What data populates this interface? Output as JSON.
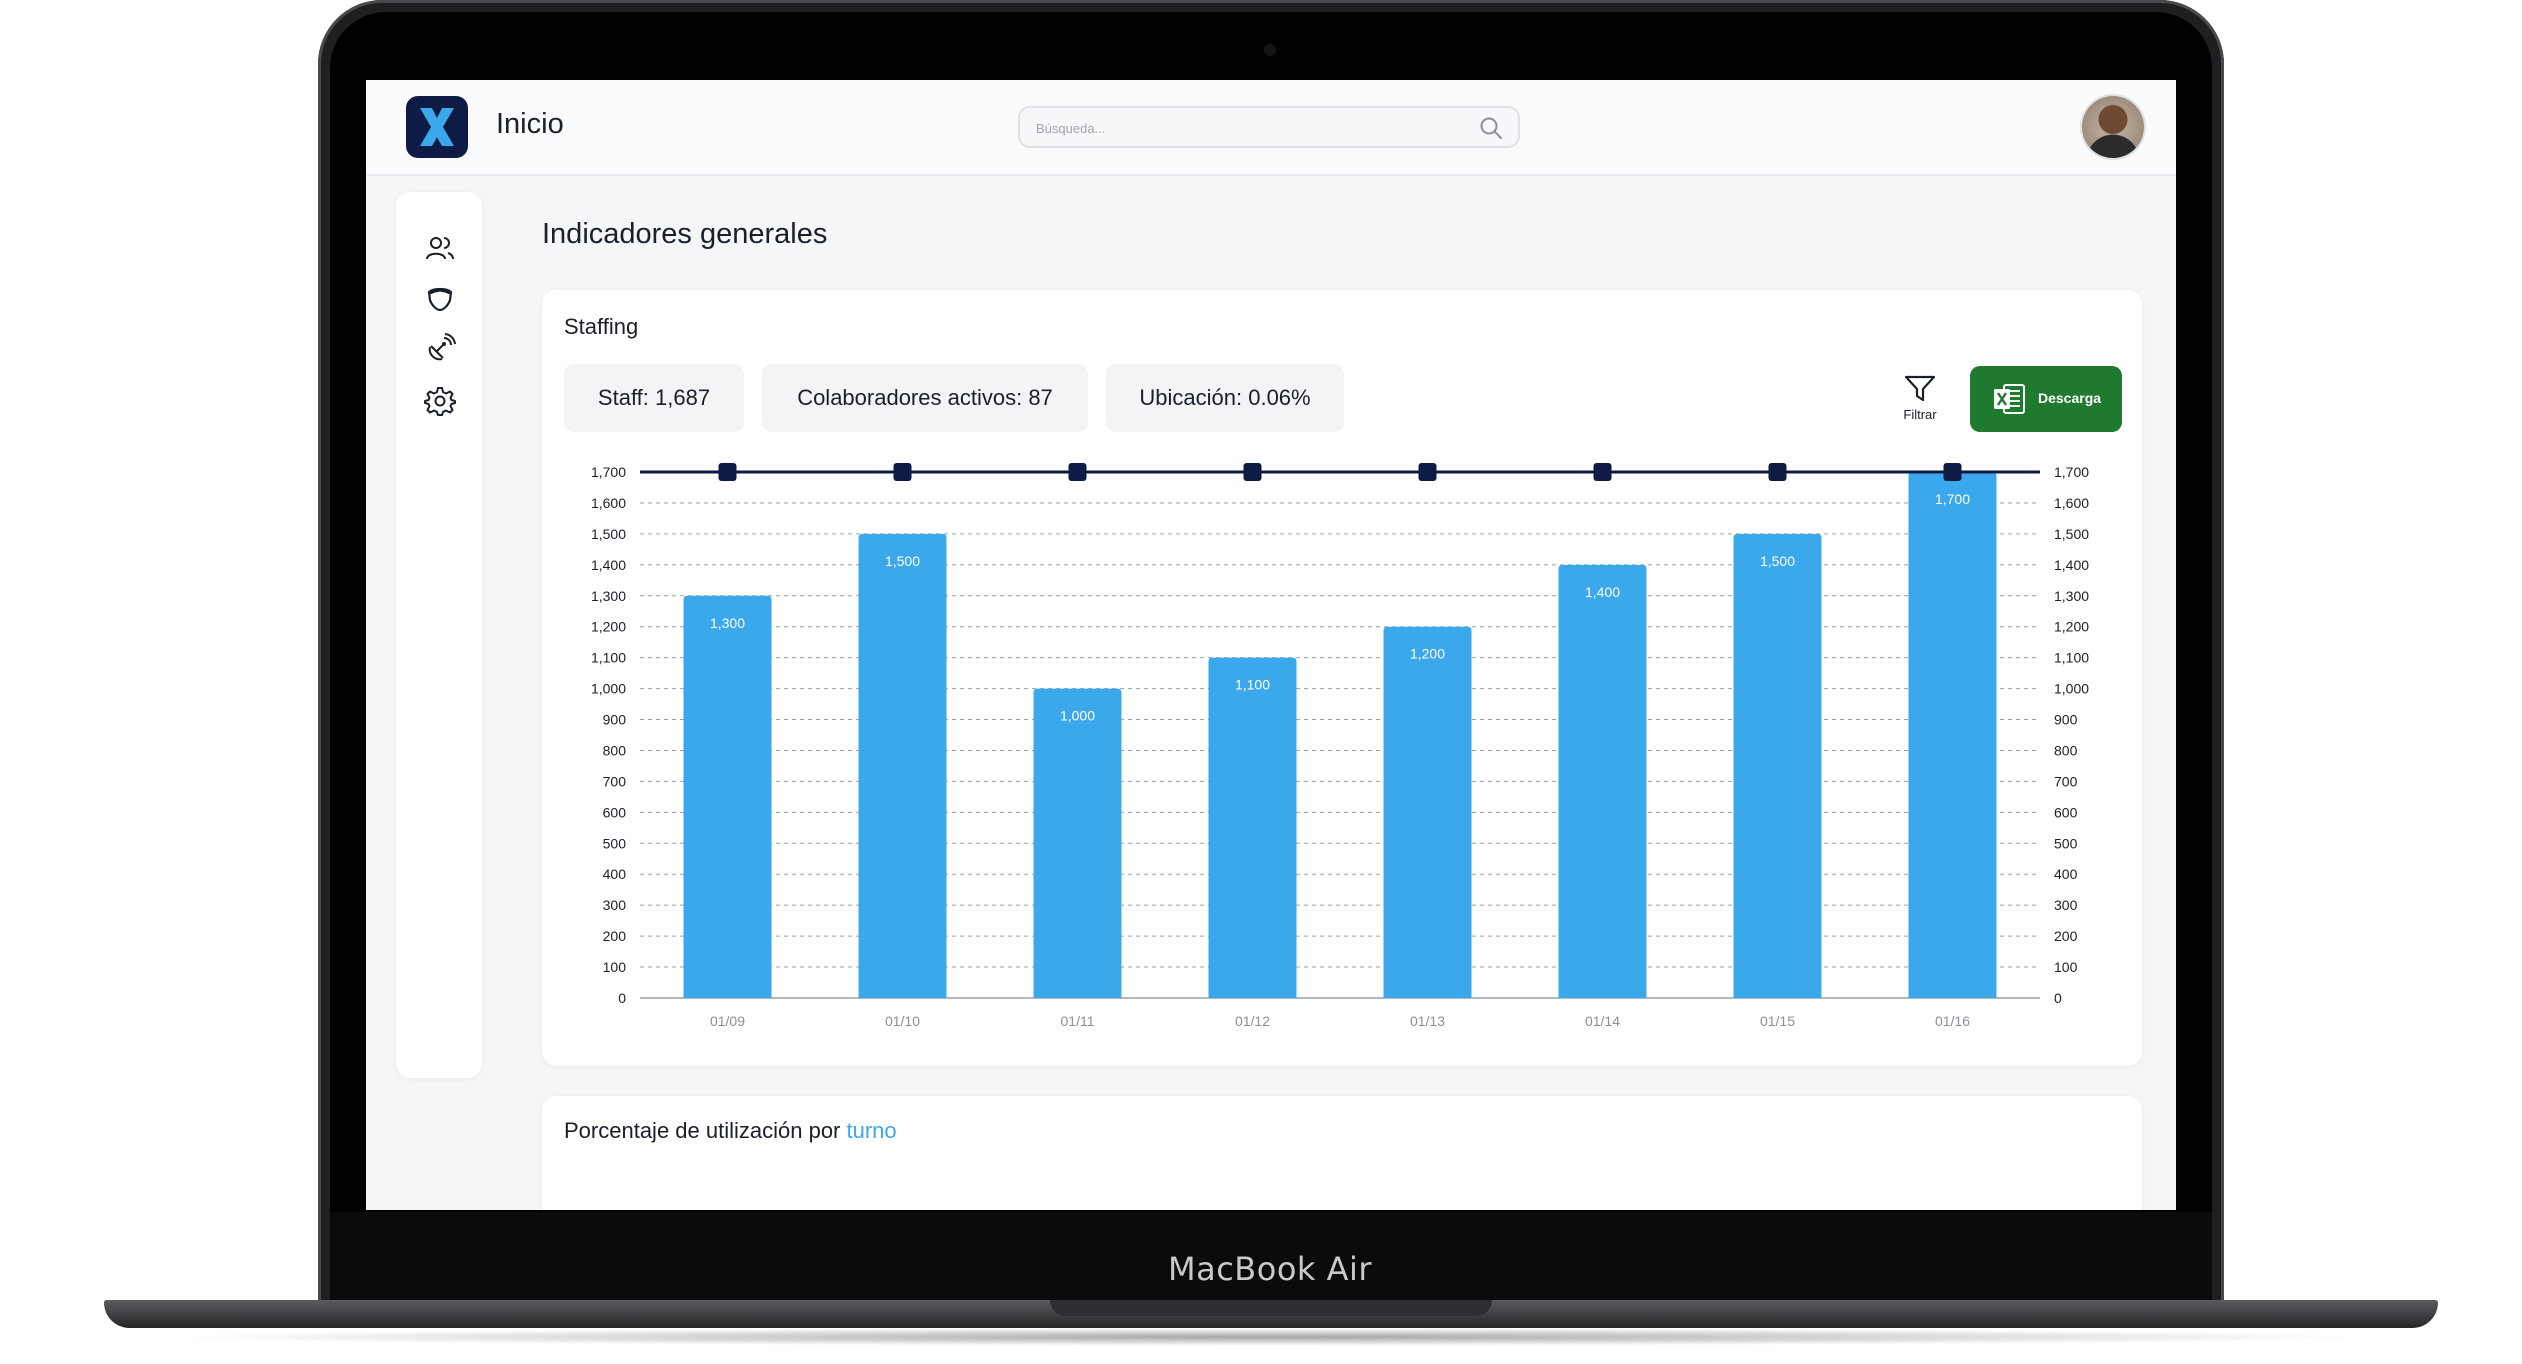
{
  "device": {
    "brand": "MacBook Air"
  },
  "header": {
    "app_title": "Inicio",
    "search_placeholder": "Búsqueda..."
  },
  "sidebar": {
    "items": [
      {
        "icon": "users-icon"
      },
      {
        "icon": "shield-icon"
      },
      {
        "icon": "satellite-icon"
      },
      {
        "icon": "gear-icon"
      }
    ]
  },
  "page": {
    "title": "Indicadores generales"
  },
  "staffing": {
    "title": "Staffing",
    "stats": [
      {
        "label": "Staff: ",
        "value": "1,687"
      },
      {
        "label": "Colaboradores activos: ",
        "value": "87"
      },
      {
        "label": "Ubicación: ",
        "value": "0.06%"
      }
    ],
    "filter_label": "Filtrar",
    "download_label": "Descarga"
  },
  "utilization": {
    "title_prefix": "Porcentaje de utilización por ",
    "title_accent": "turno"
  },
  "colors": {
    "bar": "#3aa8ea",
    "line": "#0d1b45",
    "download": "#1f7a2f",
    "accent": "#3aa8ea"
  },
  "chart_data": {
    "type": "bar",
    "categories": [
      "01/09",
      "01/10",
      "01/11",
      "01/12",
      "01/13",
      "01/14",
      "01/15",
      "01/16"
    ],
    "series": [
      {
        "type": "bar",
        "values": [
          1300,
          1500,
          1000,
          1100,
          1200,
          1400,
          1500,
          1700
        ]
      },
      {
        "type": "line",
        "values": [
          1700,
          1700,
          1700,
          1700,
          1700,
          1700,
          1700,
          1700
        ]
      }
    ],
    "ylim": [
      0,
      1700
    ],
    "yticks": [
      "0",
      "100",
      "200",
      "300",
      "400",
      "500",
      "600",
      "700",
      "800",
      "900",
      "1,000",
      "1,100",
      "1,200",
      "1,300",
      "1,400",
      "1,500",
      "1,600",
      "1,700"
    ],
    "data_labels": [
      "1,300",
      "1,500",
      "1,000",
      "1,100",
      "1,200",
      "1,400",
      "1,500",
      "1,700"
    ],
    "grid": true,
    "secondary_axis": true
  }
}
